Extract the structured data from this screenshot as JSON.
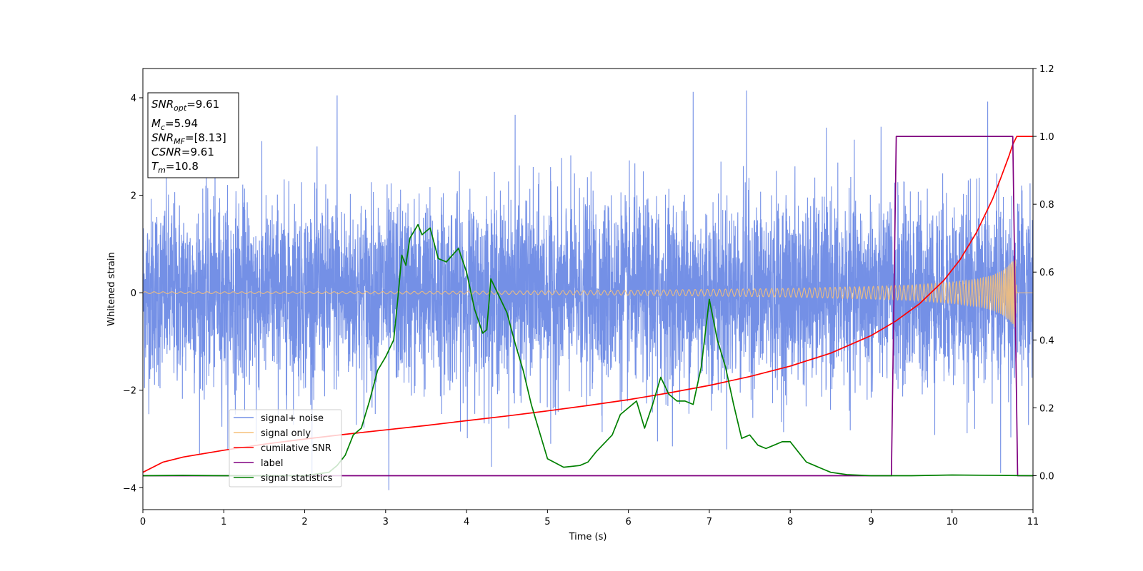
{
  "chart_data": {
    "type": "line",
    "xlabel": "Time (s)",
    "ylabel": "Whitened strain",
    "xlim": [
      0,
      11
    ],
    "ylim_left": [
      -4.45,
      4.6
    ],
    "ylim_right": [
      -0.1,
      1.2
    ],
    "x_ticks": [
      "0",
      "1",
      "2",
      "3",
      "4",
      "5",
      "6",
      "7",
      "8",
      "9",
      "10",
      "11"
    ],
    "y_ticks_left": [
      "4",
      "2",
      "0",
      "−2",
      "−4"
    ],
    "y_ticks_right": [
      "1.2",
      "1.0",
      "0.8",
      "0.6",
      "0.4",
      "0.2",
      "0.0"
    ],
    "grid": false,
    "legend_placement": "lower-left",
    "legend": [
      {
        "label": "signal+ noise",
        "color": "#7490e6"
      },
      {
        "label": "signal only",
        "color": "#f5c07a"
      },
      {
        "label": "cumilative SNR",
        "color": "#ff0000"
      },
      {
        "label": "label",
        "color": "#800080"
      },
      {
        "label": "signal statistics",
        "color": "#008000"
      }
    ],
    "info_box": {
      "snr_opt_main": "SNR",
      "snr_opt_sub": "opt",
      "snr_opt_value": "=9.61",
      "mc_main": "M",
      "mc_sub": "c",
      "mc_value": "=5.94",
      "snr_mf_main": "SNR",
      "snr_mf_sub": "MF",
      "snr_mf_value": "=[8.13]",
      "csnr_main": "CSNR",
      "csnr_value": "=9.61",
      "tm_main": "T",
      "tm_sub": "m",
      "tm_value": "=10.8"
    },
    "series": [
      {
        "name": "signal+ noise",
        "axis": "left",
        "color": "#7490e6",
        "noise_envelope": {
          "typical_range": [
            -2.2,
            2.2
          ],
          "peak_max": 4.15,
          "peak_min": -4.05,
          "x_range": [
            0,
            11
          ]
        }
      },
      {
        "name": "signal only",
        "axis": "left",
        "color": "#f5c07a",
        "envelope": {
          "x": [
            0,
            2,
            4,
            6,
            8,
            9,
            9.5,
            10,
            10.3,
            10.5,
            10.65,
            10.75,
            10.78,
            10.8,
            11
          ],
          "amp": [
            0.02,
            0.02,
            0.03,
            0.05,
            0.09,
            0.13,
            0.16,
            0.22,
            0.28,
            0.36,
            0.48,
            0.65,
            0.72,
            0,
            0
          ]
        }
      },
      {
        "name": "cumilative SNR",
        "axis": "right",
        "color": "#ff0000",
        "x": [
          0,
          0.25,
          0.5,
          1,
          1.5,
          2,
          2.5,
          3,
          3.5,
          4,
          4.5,
          5,
          5.5,
          6,
          6.5,
          7,
          7.5,
          8,
          8.5,
          9,
          9.3,
          9.6,
          9.9,
          10.1,
          10.3,
          10.5,
          10.6,
          10.7,
          10.75,
          10.8,
          11
        ],
        "y": [
          0.01,
          0.04,
          0.055,
          0.075,
          0.093,
          0.108,
          0.122,
          0.135,
          0.148,
          0.162,
          0.176,
          0.191,
          0.207,
          0.224,
          0.244,
          0.266,
          0.292,
          0.323,
          0.361,
          0.413,
          0.455,
          0.507,
          0.576,
          0.637,
          0.716,
          0.815,
          0.876,
          0.94,
          0.976,
          1.0,
          1.0
        ]
      },
      {
        "name": "label",
        "axis": "right",
        "color": "#800080",
        "x": [
          0,
          9.25,
          9.31,
          10.75,
          10.81,
          11
        ],
        "y": [
          0,
          0,
          1,
          1,
          0,
          0
        ]
      },
      {
        "name": "signal statistics",
        "axis": "right",
        "color": "#008000",
        "x": [
          0,
          0.5,
          1,
          1.5,
          2,
          2.3,
          2.4,
          2.5,
          2.6,
          2.7,
          2.8,
          2.9,
          3.0,
          3.1,
          3.15,
          3.2,
          3.25,
          3.3,
          3.4,
          3.45,
          3.55,
          3.65,
          3.75,
          3.9,
          4.0,
          4.1,
          4.2,
          4.25,
          4.3,
          4.4,
          4.5,
          4.6,
          4.7,
          4.8,
          5.0,
          5.2,
          5.4,
          5.5,
          5.6,
          5.8,
          5.9,
          6.0,
          6.1,
          6.2,
          6.3,
          6.4,
          6.5,
          6.6,
          6.7,
          6.8,
          6.9,
          7.0,
          7.1,
          7.2,
          7.3,
          7.4,
          7.5,
          7.6,
          7.7,
          7.8,
          7.9,
          8.0,
          8.1,
          8.2,
          8.3,
          8.4,
          8.5,
          8.7,
          9.0,
          9.5,
          10.0,
          11.0
        ],
        "y": [
          0.0,
          0.001,
          0.0,
          0.0,
          0.0,
          0.01,
          0.03,
          0.06,
          0.12,
          0.14,
          0.22,
          0.31,
          0.35,
          0.4,
          0.52,
          0.65,
          0.62,
          0.7,
          0.74,
          0.71,
          0.73,
          0.64,
          0.63,
          0.67,
          0.6,
          0.49,
          0.42,
          0.43,
          0.58,
          0.53,
          0.48,
          0.39,
          0.31,
          0.21,
          0.05,
          0.025,
          0.03,
          0.04,
          0.07,
          0.12,
          0.18,
          0.2,
          0.22,
          0.14,
          0.21,
          0.29,
          0.24,
          0.22,
          0.22,
          0.21,
          0.32,
          0.52,
          0.4,
          0.32,
          0.21,
          0.11,
          0.12,
          0.09,
          0.08,
          0.09,
          0.1,
          0.1,
          0.07,
          0.04,
          0.03,
          0.02,
          0.01,
          0.003,
          0.0,
          0.0,
          0.002,
          0.0
        ]
      }
    ]
  }
}
